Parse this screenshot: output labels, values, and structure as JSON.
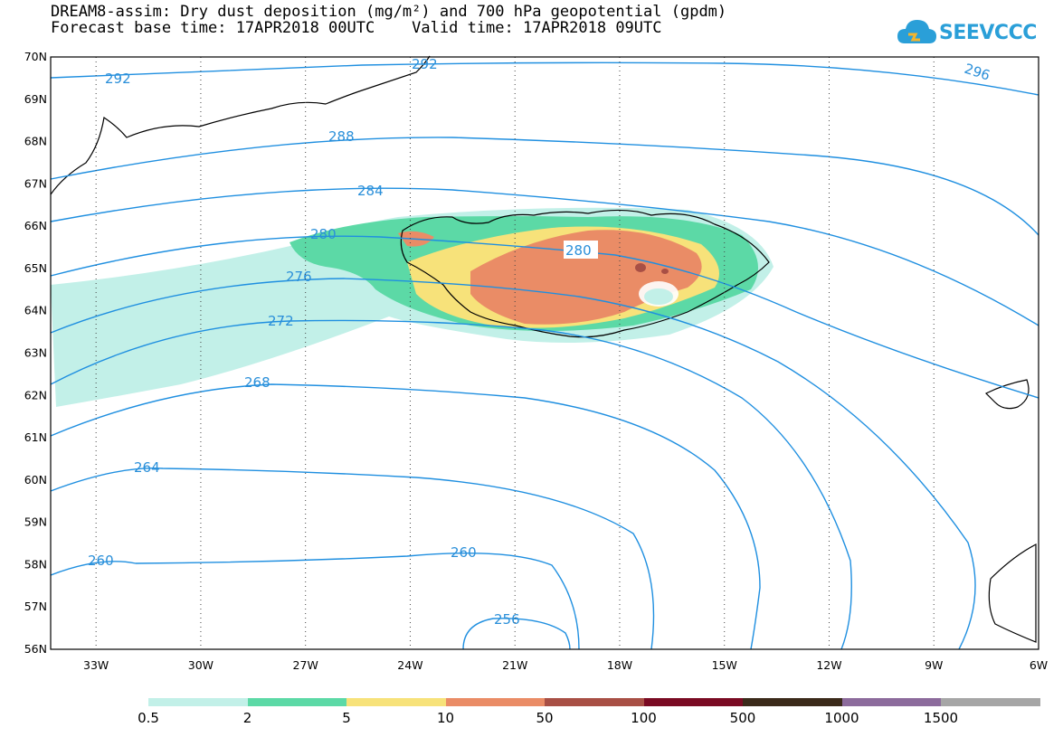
{
  "title": {
    "line1": "DREAM8-assim: Dry dust deposition (mg/m²) and 700 hPa geopotential (gpdm)",
    "line2": "Forecast base time: 17APR2018 00UTC    Valid time: 17APR2018 09UTC"
  },
  "logo": {
    "text": "SEEVCCC",
    "icon": "cloud-icon",
    "color": "#2a9fd8"
  },
  "axes": {
    "lat_labels": [
      "70N",
      "69N",
      "68N",
      "67N",
      "66N",
      "65N",
      "64N",
      "63N",
      "62N",
      "61N",
      "60N",
      "59N",
      "58N",
      "57N",
      "56N"
    ],
    "lon_labels": [
      "33W",
      "30W",
      "27W",
      "24W",
      "21W",
      "18W",
      "15W",
      "12W",
      "9W",
      "6W"
    ],
    "lat_range": [
      56,
      70
    ],
    "lon_range": [
      -34.3,
      -6
    ],
    "gridlines": "dotted"
  },
  "contours": {
    "color": "#1f8fe0",
    "labels": [
      "292",
      "296",
      "288",
      "284",
      "280",
      "276",
      "272",
      "268",
      "264",
      "260",
      "256"
    ]
  },
  "legend": {
    "colors": [
      "#c2f0e8",
      "#5cd9a6",
      "#f7e27a",
      "#ea8c66",
      "#a84f45",
      "#7a0a23",
      "#3b2a1a",
      "#8c6b9c",
      "#a6a6a6"
    ],
    "labels": [
      "0.5",
      "2",
      "5",
      "10",
      "50",
      "100",
      "500",
      "1000",
      "1500"
    ]
  }
}
